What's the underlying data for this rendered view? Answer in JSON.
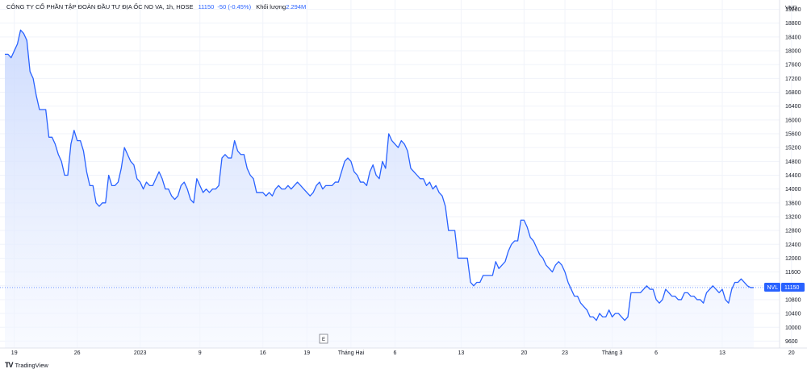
{
  "header": {
    "title": "CÔNG TY CỔ PHẦN TẬP ĐOÀN ĐẦU TƯ ĐỊA ỐC NO VA, 1h, HOSE",
    "price": "11150",
    "change": "-50 (-0.45%)",
    "volume_label": "Khối lượng",
    "volume_value": "2.294M"
  },
  "footer": {
    "brand": "TradingView",
    "logo_mark": "TV"
  },
  "events_marker": "E",
  "price_tag": {
    "symbol": "NVL",
    "value": "11150"
  },
  "colors": {
    "line": "#2962ff",
    "fill_top": "#c9d8fd",
    "fill_bottom": "#f4f7ff",
    "grid": "#f0f3fa",
    "tag": "#2962ff"
  },
  "chart_data": {
    "type": "area",
    "ylabel": "VND",
    "ylim": [
      9400,
      19400
    ],
    "yticks": [
      9600,
      10000,
      10400,
      10800,
      11200,
      11600,
      12000,
      12400,
      12800,
      13200,
      13600,
      14000,
      14400,
      14800,
      15200,
      15600,
      16000,
      16400,
      16800,
      17200,
      17600,
      18000,
      18400,
      18800,
      19200
    ],
    "xticks": [
      {
        "i": 3,
        "label": "19"
      },
      {
        "i": 23,
        "label": "26"
      },
      {
        "i": 43,
        "label": "2023"
      },
      {
        "i": 62,
        "label": "9"
      },
      {
        "i": 82,
        "label": "16"
      },
      {
        "i": 96,
        "label": "19"
      },
      {
        "i": 110,
        "label": "Tháng Hai"
      },
      {
        "i": 124,
        "label": "6"
      },
      {
        "i": 145,
        "label": "13"
      },
      {
        "i": 165,
        "label": "20"
      },
      {
        "i": 178,
        "label": "23"
      },
      {
        "i": 193,
        "label": "Tháng 3"
      },
      {
        "i": 207,
        "label": "6"
      },
      {
        "i": 228,
        "label": "13"
      },
      {
        "i": 250,
        "label": "20"
      }
    ],
    "grid": true,
    "values": [
      17900,
      17900,
      17800,
      18000,
      18200,
      18600,
      18500,
      18300,
      17400,
      17200,
      16700,
      16300,
      16300,
      16300,
      15500,
      15500,
      15300,
      15000,
      14800,
      14400,
      14400,
      15300,
      15700,
      15400,
      15400,
      15100,
      14500,
      14100,
      14100,
      13600,
      13500,
      13600,
      13600,
      14400,
      14100,
      14100,
      14200,
      14600,
      15200,
      15000,
      14800,
      14700,
      14300,
      14200,
      14000,
      14200,
      14100,
      14100,
      14300,
      14500,
      14300,
      14000,
      14000,
      13800,
      13700,
      13800,
      14100,
      14200,
      14000,
      13700,
      13600,
      14300,
      14100,
      13900,
      14000,
      13900,
      14000,
      14000,
      14100,
      14900,
      15000,
      14900,
      14900,
      15400,
      15100,
      15000,
      15000,
      14600,
      14400,
      14300,
      13900,
      13900,
      13900,
      13800,
      13900,
      13800,
      14000,
      14100,
      14000,
      14000,
      14100,
      14000,
      14100,
      14200,
      14100,
      14000,
      13900,
      13800,
      13900,
      14100,
      14200,
      14000,
      14100,
      14100,
      14100,
      14200,
      14200,
      14500,
      14800,
      14900,
      14800,
      14500,
      14400,
      14200,
      14200,
      14100,
      14500,
      14700,
      14400,
      14300,
      14800,
      14600,
      15600,
      15400,
      15300,
      15200,
      15400,
      15300,
      15100,
      14600,
      14500,
      14400,
      14300,
      14300,
      14100,
      14200,
      14000,
      14100,
      13900,
      13800,
      13500,
      12800,
      12800,
      12800,
      12000,
      12000,
      12000,
      12000,
      11300,
      11200,
      11300,
      11300,
      11500,
      11500,
      11500,
      11500,
      11900,
      11700,
      11800,
      11900,
      12200,
      12400,
      12500,
      12500,
      13100,
      13100,
      12900,
      12600,
      12500,
      12300,
      12100,
      12000,
      11800,
      11700,
      11600,
      11800,
      11900,
      11800,
      11600,
      11300,
      11100,
      10900,
      10900,
      10700,
      10600,
      10500,
      10300,
      10300,
      10200,
      10400,
      10300,
      10300,
      10500,
      10300,
      10400,
      10400,
      10300,
      10200,
      10300,
      11000,
      11000,
      11000,
      11000,
      11100,
      11200,
      11100,
      11100,
      10800,
      10700,
      10800,
      11100,
      11000,
      10900,
      10900,
      10800,
      10800,
      11000,
      11000,
      10900,
      10900,
      10800,
      10800,
      10700,
      11000,
      11100,
      11200,
      11100,
      11000,
      11100,
      10800,
      10700,
      11100,
      11300,
      11300,
      11400,
      11300,
      11200,
      11150,
      11150
    ]
  }
}
